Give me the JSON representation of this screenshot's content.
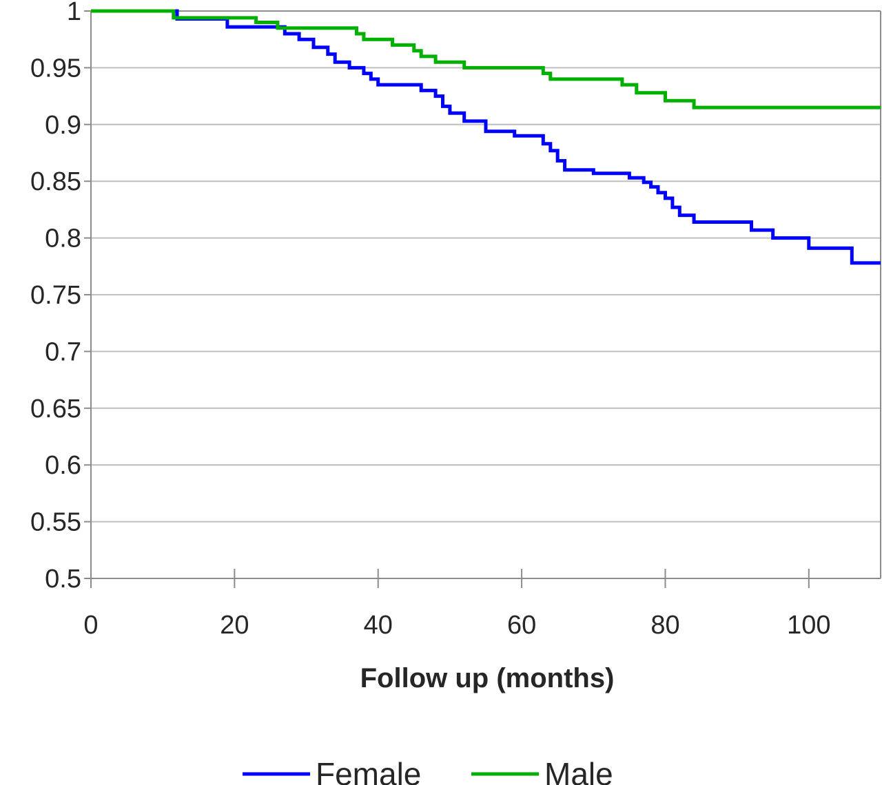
{
  "chart_data": {
    "type": "line",
    "title": "",
    "xlabel": "Follow up (months)",
    "ylabel": "",
    "xlim": [
      0,
      110
    ],
    "ylim": [
      0.5,
      1
    ],
    "x_ticks": [
      0,
      20,
      40,
      60,
      80,
      100
    ],
    "x_tick_labels": [
      "0",
      "20",
      "40",
      "60",
      "80",
      "100"
    ],
    "y_ticks": [
      0.5,
      0.55,
      0.6,
      0.65,
      0.7,
      0.75,
      0.8,
      0.85,
      0.9,
      0.95,
      1
    ],
    "y_tick_labels": [
      "0.5",
      "0.55",
      "0.6",
      "0.65",
      "0.7",
      "0.75",
      "0.8",
      "0.85",
      "0.9",
      "0.95",
      "1"
    ],
    "grid": "horizontal",
    "legend_position": "bottom",
    "step": true,
    "series": [
      {
        "name": "Female",
        "color": "#0000FF",
        "points": [
          [
            0,
            1
          ],
          [
            12,
            0.993
          ],
          [
            19,
            0.986
          ],
          [
            27,
            0.98
          ],
          [
            29,
            0.975
          ],
          [
            31,
            0.968
          ],
          [
            33,
            0.962
          ],
          [
            34,
            0.955
          ],
          [
            36,
            0.95
          ],
          [
            38,
            0.945
          ],
          [
            39,
            0.94
          ],
          [
            40,
            0.935
          ],
          [
            46,
            0.93
          ],
          [
            48,
            0.925
          ],
          [
            49,
            0.916
          ],
          [
            50,
            0.91
          ],
          [
            52,
            0.903
          ],
          [
            55,
            0.894
          ],
          [
            59,
            0.89
          ],
          [
            63,
            0.883
          ],
          [
            64,
            0.877
          ],
          [
            65,
            0.868
          ],
          [
            66,
            0.86
          ],
          [
            70,
            0.857
          ],
          [
            75,
            0.853
          ],
          [
            77,
            0.849
          ],
          [
            78,
            0.845
          ],
          [
            79,
            0.84
          ],
          [
            80,
            0.835
          ],
          [
            81,
            0.827
          ],
          [
            82,
            0.82
          ],
          [
            84,
            0.814
          ],
          [
            92,
            0.807
          ],
          [
            95,
            0.8
          ],
          [
            100,
            0.791
          ],
          [
            106,
            0.778
          ],
          [
            110,
            0.778
          ]
        ]
      },
      {
        "name": "Male",
        "color": "#00B000",
        "points": [
          [
            0,
            1
          ],
          [
            11.5,
            0.994
          ],
          [
            23,
            0.99
          ],
          [
            26,
            0.985
          ],
          [
            37,
            0.98
          ],
          [
            38,
            0.975
          ],
          [
            42,
            0.97
          ],
          [
            45,
            0.965
          ],
          [
            46,
            0.96
          ],
          [
            48,
            0.955
          ],
          [
            52,
            0.95
          ],
          [
            63,
            0.945
          ],
          [
            64,
            0.94
          ],
          [
            74,
            0.935
          ],
          [
            76,
            0.928
          ],
          [
            80,
            0.921
          ],
          [
            84,
            0.915
          ],
          [
            110,
            0.915
          ]
        ]
      }
    ]
  }
}
